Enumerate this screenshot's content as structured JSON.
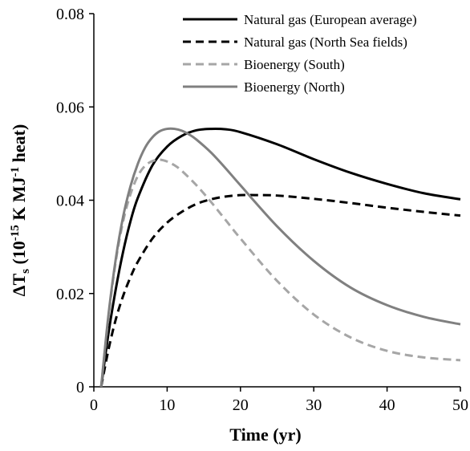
{
  "chart_data": {
    "type": "line",
    "xlabel": "Time (yr)",
    "ylabel": {
      "pre": "ΔT",
      "sub": "s",
      "mid": " (10",
      "sup1": "-15",
      "mid2": " K MJ",
      "sup2": "-1",
      "post": " heat)"
    },
    "xlim": [
      0,
      50
    ],
    "ylim": [
      0,
      0.08
    ],
    "xticks": [
      0,
      10,
      20,
      30,
      40,
      50
    ],
    "xtick_labels": [
      "0",
      "10",
      "20",
      "30",
      "40",
      "50"
    ],
    "yticks": [
      0,
      0.02,
      0.04,
      0.06,
      0.08
    ],
    "ytick_labels": [
      "0",
      "0.02",
      "0.04",
      "0.06",
      "0.08"
    ],
    "legend_position": "top-right",
    "grid": false,
    "series": [
      {
        "name": "Natural gas (European average)",
        "color": "#000000",
        "style": "solid",
        "x": [
          1,
          2,
          3,
          4,
          5,
          6,
          8,
          10,
          12,
          14,
          16,
          18,
          20,
          25,
          30,
          35,
          40,
          45,
          50
        ],
        "values": [
          0,
          0.0115,
          0.021,
          0.029,
          0.0355,
          0.0405,
          0.0475,
          0.0515,
          0.0538,
          0.055,
          0.0553,
          0.0552,
          0.0546,
          0.052,
          0.0488,
          0.0459,
          0.0435,
          0.0415,
          0.0402
        ]
      },
      {
        "name": "Natural gas (North Sea fields)",
        "color": "#000000",
        "style": "dashed",
        "x": [
          1,
          2,
          3,
          4,
          5,
          6,
          8,
          10,
          12,
          14,
          16,
          18,
          20,
          22,
          25,
          30,
          35,
          40,
          45,
          50
        ],
        "values": [
          0,
          0.008,
          0.0145,
          0.0195,
          0.0235,
          0.0268,
          0.0318,
          0.0352,
          0.0375,
          0.0392,
          0.0402,
          0.0408,
          0.0411,
          0.0411,
          0.041,
          0.0403,
          0.0394,
          0.0384,
          0.0375,
          0.0367
        ]
      },
      {
        "name": "Bioenergy (South)",
        "color": "#a6a6a6",
        "style": "dashed",
        "x": [
          1,
          2,
          3,
          4,
          5,
          6,
          7,
          8,
          9,
          10,
          11,
          12,
          14,
          16,
          18,
          20,
          25,
          30,
          35,
          40,
          45,
          50
        ],
        "values": [
          0,
          0.015,
          0.027,
          0.0355,
          0.0413,
          0.0452,
          0.0474,
          0.0484,
          0.0487,
          0.0483,
          0.0475,
          0.0463,
          0.0432,
          0.0396,
          0.0357,
          0.0318,
          0.0227,
          0.0155,
          0.0106,
          0.0077,
          0.0063,
          0.0057
        ]
      },
      {
        "name": "Bioenergy (North)",
        "color": "#808080",
        "style": "solid",
        "x": [
          1,
          2,
          3,
          4,
          5,
          6,
          7,
          8,
          9,
          10,
          11,
          12,
          13,
          14,
          16,
          18,
          20,
          25,
          30,
          35,
          40,
          45,
          50
        ],
        "values": [
          0,
          0.0155,
          0.0275,
          0.0365,
          0.043,
          0.0478,
          0.0513,
          0.0535,
          0.0548,
          0.0553,
          0.0553,
          0.0549,
          0.0541,
          0.053,
          0.0502,
          0.0468,
          0.0432,
          0.0344,
          0.027,
          0.0213,
          0.0175,
          0.015,
          0.0134
        ]
      }
    ]
  }
}
